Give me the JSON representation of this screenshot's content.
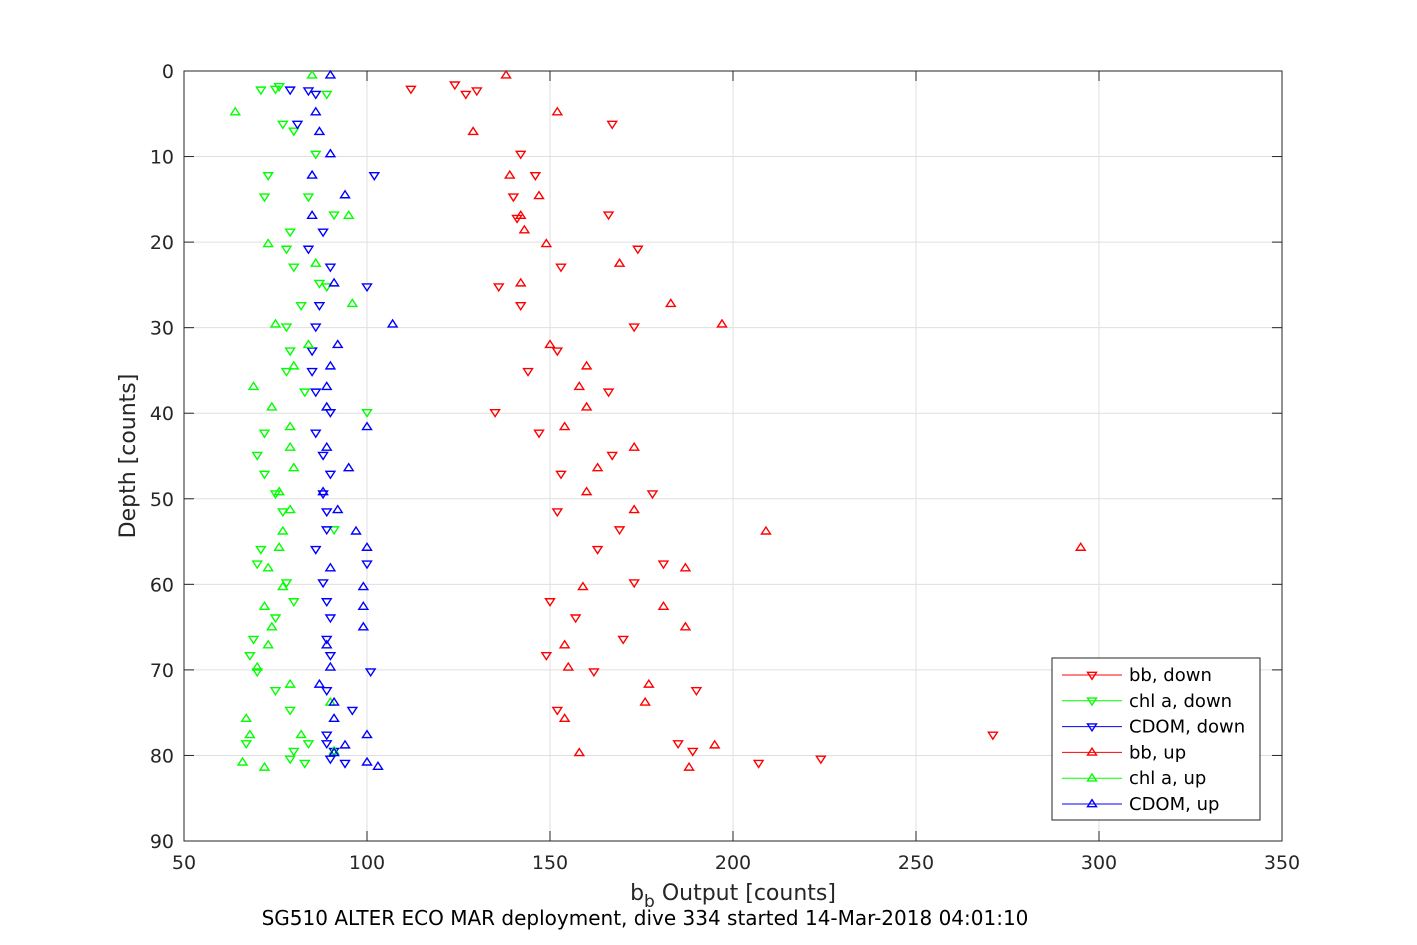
{
  "chart_data": {
    "type": "scatter",
    "title": "",
    "caption": "SG510 ALTER ECO MAR deployment, dive 334 started 14-Mar-2018 04:01:10",
    "xlabel_main": "b",
    "xlabel_sub": "b",
    "xlabel_rest": " Output [counts]",
    "ylabel": "Depth [counts]",
    "xlim": [
      50,
      350
    ],
    "ylim": [
      0,
      90
    ],
    "y_reversed": true,
    "grid": true,
    "x_ticks": [
      50,
      100,
      150,
      200,
      250,
      300,
      350
    ],
    "y_ticks": [
      0,
      10,
      20,
      30,
      40,
      50,
      60,
      70,
      80,
      90
    ],
    "legend_position": "bottom-right",
    "series": [
      {
        "name": "bb, down",
        "color": "#ff0000",
        "marker": "triangle-down",
        "points": [
          [
            112,
            2.1
          ],
          [
            124,
            1.6
          ],
          [
            127,
            2.7
          ],
          [
            130,
            2.3
          ],
          [
            167,
            6.2
          ],
          [
            142,
            9.7
          ],
          [
            146,
            12.2
          ],
          [
            140,
            14.7
          ],
          [
            166,
            16.8
          ],
          [
            141,
            17.2
          ],
          [
            174,
            20.8
          ],
          [
            153,
            22.9
          ],
          [
            136,
            25.2
          ],
          [
            142,
            27.4
          ],
          [
            173,
            29.9
          ],
          [
            152,
            32.7
          ],
          [
            144,
            35.1
          ],
          [
            166,
            37.5
          ],
          [
            135,
            39.9
          ],
          [
            147,
            42.3
          ],
          [
            167,
            44.9
          ],
          [
            153,
            47.1
          ],
          [
            178,
            49.4
          ],
          [
            152,
            51.5
          ],
          [
            169,
            53.6
          ],
          [
            163,
            55.9
          ],
          [
            181,
            57.6
          ],
          [
            173,
            59.8
          ],
          [
            150,
            62.0
          ],
          [
            157,
            63.9
          ],
          [
            170,
            66.4
          ],
          [
            149,
            68.3
          ],
          [
            162,
            70.2
          ],
          [
            190,
            72.4
          ],
          [
            152,
            74.7
          ],
          [
            185,
            78.6
          ],
          [
            271,
            77.6
          ],
          [
            189,
            79.5
          ],
          [
            224,
            80.4
          ],
          [
            207,
            80.9
          ]
        ]
      },
      {
        "name": "chl a, down",
        "color": "#00ff00",
        "marker": "triangle-down",
        "points": [
          [
            76,
            1.8
          ],
          [
            71,
            2.2
          ],
          [
            75,
            2.1
          ],
          [
            89,
            2.7
          ],
          [
            77,
            6.2
          ],
          [
            80,
            7.0
          ],
          [
            86,
            9.7
          ],
          [
            73,
            12.2
          ],
          [
            72,
            14.7
          ],
          [
            84,
            14.7
          ],
          [
            91,
            16.8
          ],
          [
            79,
            18.8
          ],
          [
            78,
            20.8
          ],
          [
            80,
            22.9
          ],
          [
            87,
            24.8
          ],
          [
            89,
            25.2
          ],
          [
            82,
            27.4
          ],
          [
            78,
            29.9
          ],
          [
            79,
            32.7
          ],
          [
            78,
            35.1
          ],
          [
            83,
            37.5
          ],
          [
            100,
            39.9
          ],
          [
            72,
            42.3
          ],
          [
            70,
            44.9
          ],
          [
            72,
            47.1
          ],
          [
            75,
            49.4
          ],
          [
            77,
            51.5
          ],
          [
            91,
            53.6
          ],
          [
            71,
            55.9
          ],
          [
            70,
            57.6
          ],
          [
            78,
            59.8
          ],
          [
            80,
            62.0
          ],
          [
            75,
            63.9
          ],
          [
            69,
            66.4
          ],
          [
            68,
            68.3
          ],
          [
            70,
            70.2
          ],
          [
            75,
            72.4
          ],
          [
            79,
            74.7
          ],
          [
            84,
            78.6
          ],
          [
            67,
            78.6
          ],
          [
            80,
            79.5
          ],
          [
            79,
            80.4
          ],
          [
            83,
            80.9
          ]
        ]
      },
      {
        "name": "CDOM, down",
        "color": "#0000ff",
        "marker": "triangle-down",
        "points": [
          [
            79,
            2.2
          ],
          [
            84,
            2.3
          ],
          [
            86,
            2.7
          ],
          [
            81,
            6.2
          ],
          [
            102,
            12.2
          ],
          [
            88,
            18.8
          ],
          [
            84,
            20.8
          ],
          [
            90,
            22.9
          ],
          [
            100,
            25.2
          ],
          [
            87,
            27.4
          ],
          [
            86,
            29.9
          ],
          [
            85,
            32.7
          ],
          [
            85,
            35.1
          ],
          [
            86,
            37.5
          ],
          [
            90,
            39.9
          ],
          [
            86,
            42.3
          ],
          [
            88,
            44.9
          ],
          [
            90,
            47.1
          ],
          [
            88,
            49.4
          ],
          [
            89,
            51.5
          ],
          [
            89,
            53.6
          ],
          [
            86,
            55.9
          ],
          [
            100,
            57.6
          ],
          [
            88,
            59.8
          ],
          [
            89,
            62.0
          ],
          [
            90,
            63.9
          ],
          [
            89,
            66.4
          ],
          [
            90,
            68.3
          ],
          [
            101,
            70.2
          ],
          [
            89,
            72.4
          ],
          [
            96,
            74.7
          ],
          [
            89,
            77.6
          ],
          [
            89,
            78.6
          ],
          [
            91,
            79.5
          ],
          [
            90,
            80.4
          ],
          [
            94,
            80.9
          ]
        ]
      },
      {
        "name": "bb, up",
        "color": "#ff0000",
        "marker": "triangle-up",
        "points": [
          [
            138,
            0.5
          ],
          [
            152,
            4.8
          ],
          [
            129,
            7.1
          ],
          [
            139,
            12.2
          ],
          [
            147,
            14.6
          ],
          [
            142,
            16.9
          ],
          [
            143,
            18.6
          ],
          [
            149,
            20.2
          ],
          [
            169,
            22.5
          ],
          [
            142,
            24.8
          ],
          [
            183,
            27.2
          ],
          [
            197,
            29.6
          ],
          [
            150,
            32.0
          ],
          [
            160,
            34.5
          ],
          [
            158,
            36.9
          ],
          [
            160,
            39.3
          ],
          [
            154,
            41.6
          ],
          [
            173,
            44.0
          ],
          [
            163,
            46.4
          ],
          [
            160,
            49.2
          ],
          [
            173,
            51.3
          ],
          [
            209,
            53.8
          ],
          [
            295,
            55.7
          ],
          [
            187,
            58.1
          ],
          [
            159,
            60.3
          ],
          [
            181,
            62.6
          ],
          [
            187,
            65.0
          ],
          [
            154,
            67.1
          ],
          [
            155,
            69.7
          ],
          [
            177,
            71.7
          ],
          [
            176,
            73.8
          ],
          [
            154,
            75.7
          ],
          [
            195,
            78.8
          ],
          [
            158,
            79.7
          ],
          [
            188,
            81.4
          ]
        ]
      },
      {
        "name": "chl a, up",
        "color": "#00ff00",
        "marker": "triangle-up",
        "points": [
          [
            85,
            0.5
          ],
          [
            64,
            4.8
          ],
          [
            95,
            16.9
          ],
          [
            73,
            20.2
          ],
          [
            86,
            22.5
          ],
          [
            96,
            27.2
          ],
          [
            75,
            29.6
          ],
          [
            84,
            32.0
          ],
          [
            80,
            34.5
          ],
          [
            69,
            36.9
          ],
          [
            74,
            39.3
          ],
          [
            79,
            41.6
          ],
          [
            79,
            44.0
          ],
          [
            80,
            46.4
          ],
          [
            76,
            49.2
          ],
          [
            79,
            51.3
          ],
          [
            77,
            53.8
          ],
          [
            76,
            55.7
          ],
          [
            73,
            58.1
          ],
          [
            77,
            60.3
          ],
          [
            72,
            62.6
          ],
          [
            74,
            65.0
          ],
          [
            73,
            67.1
          ],
          [
            70,
            69.7
          ],
          [
            79,
            71.7
          ],
          [
            90,
            73.8
          ],
          [
            67,
            75.7
          ],
          [
            82,
            77.6
          ],
          [
            68,
            77.6
          ],
          [
            91,
            79.5
          ],
          [
            66,
            80.8
          ],
          [
            72,
            81.4
          ]
        ]
      },
      {
        "name": "CDOM, up",
        "color": "#0000ff",
        "marker": "triangle-up",
        "points": [
          [
            90,
            0.5
          ],
          [
            86,
            4.8
          ],
          [
            87,
            7.1
          ],
          [
            90,
            9.7
          ],
          [
            85,
            12.2
          ],
          [
            94,
            14.5
          ],
          [
            85,
            16.9
          ],
          [
            91,
            24.8
          ],
          [
            107,
            29.6
          ],
          [
            92,
            32.0
          ],
          [
            90,
            34.5
          ],
          [
            89,
            36.9
          ],
          [
            89,
            39.3
          ],
          [
            100,
            41.6
          ],
          [
            89,
            44.0
          ],
          [
            95,
            46.4
          ],
          [
            88,
            49.2
          ],
          [
            92,
            51.3
          ],
          [
            97,
            53.8
          ],
          [
            100,
            55.7
          ],
          [
            90,
            58.1
          ],
          [
            99,
            60.3
          ],
          [
            99,
            62.6
          ],
          [
            99,
            65.0
          ],
          [
            89,
            67.1
          ],
          [
            90,
            69.7
          ],
          [
            87,
            71.7
          ],
          [
            91,
            73.8
          ],
          [
            91,
            75.7
          ],
          [
            100,
            77.6
          ],
          [
            94,
            78.8
          ],
          [
            91,
            79.7
          ],
          [
            100,
            80.8
          ],
          [
            103,
            81.3
          ]
        ]
      }
    ]
  }
}
